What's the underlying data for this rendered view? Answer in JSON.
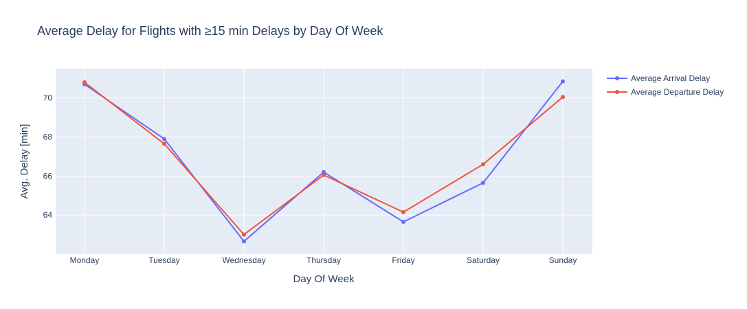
{
  "chart_data": {
    "type": "line",
    "title": "Average Delay for Flights with ≥15 min Delays by Day Of Week",
    "xlabel": "Day Of Week",
    "ylabel": "Avg. Delay [min]",
    "categories": [
      "Monday",
      "Tuesday",
      "Wednesday",
      "Thursday",
      "Friday",
      "Saturday",
      "Sunday"
    ],
    "ylim": [
      62.0,
      71.5
    ],
    "yticks": [
      64,
      66,
      68,
      70
    ],
    "grid": true,
    "legend_position": "top-right",
    "series": [
      {
        "name": "Average Arrival Delay",
        "color": "#636efa",
        "values": [
          70.7,
          67.9,
          62.65,
          66.2,
          63.65,
          65.65,
          70.85
        ]
      },
      {
        "name": "Average Departure Delay",
        "color": "#ef553b",
        "values": [
          70.8,
          67.65,
          63.0,
          66.05,
          64.15,
          66.6,
          70.05
        ]
      }
    ]
  }
}
